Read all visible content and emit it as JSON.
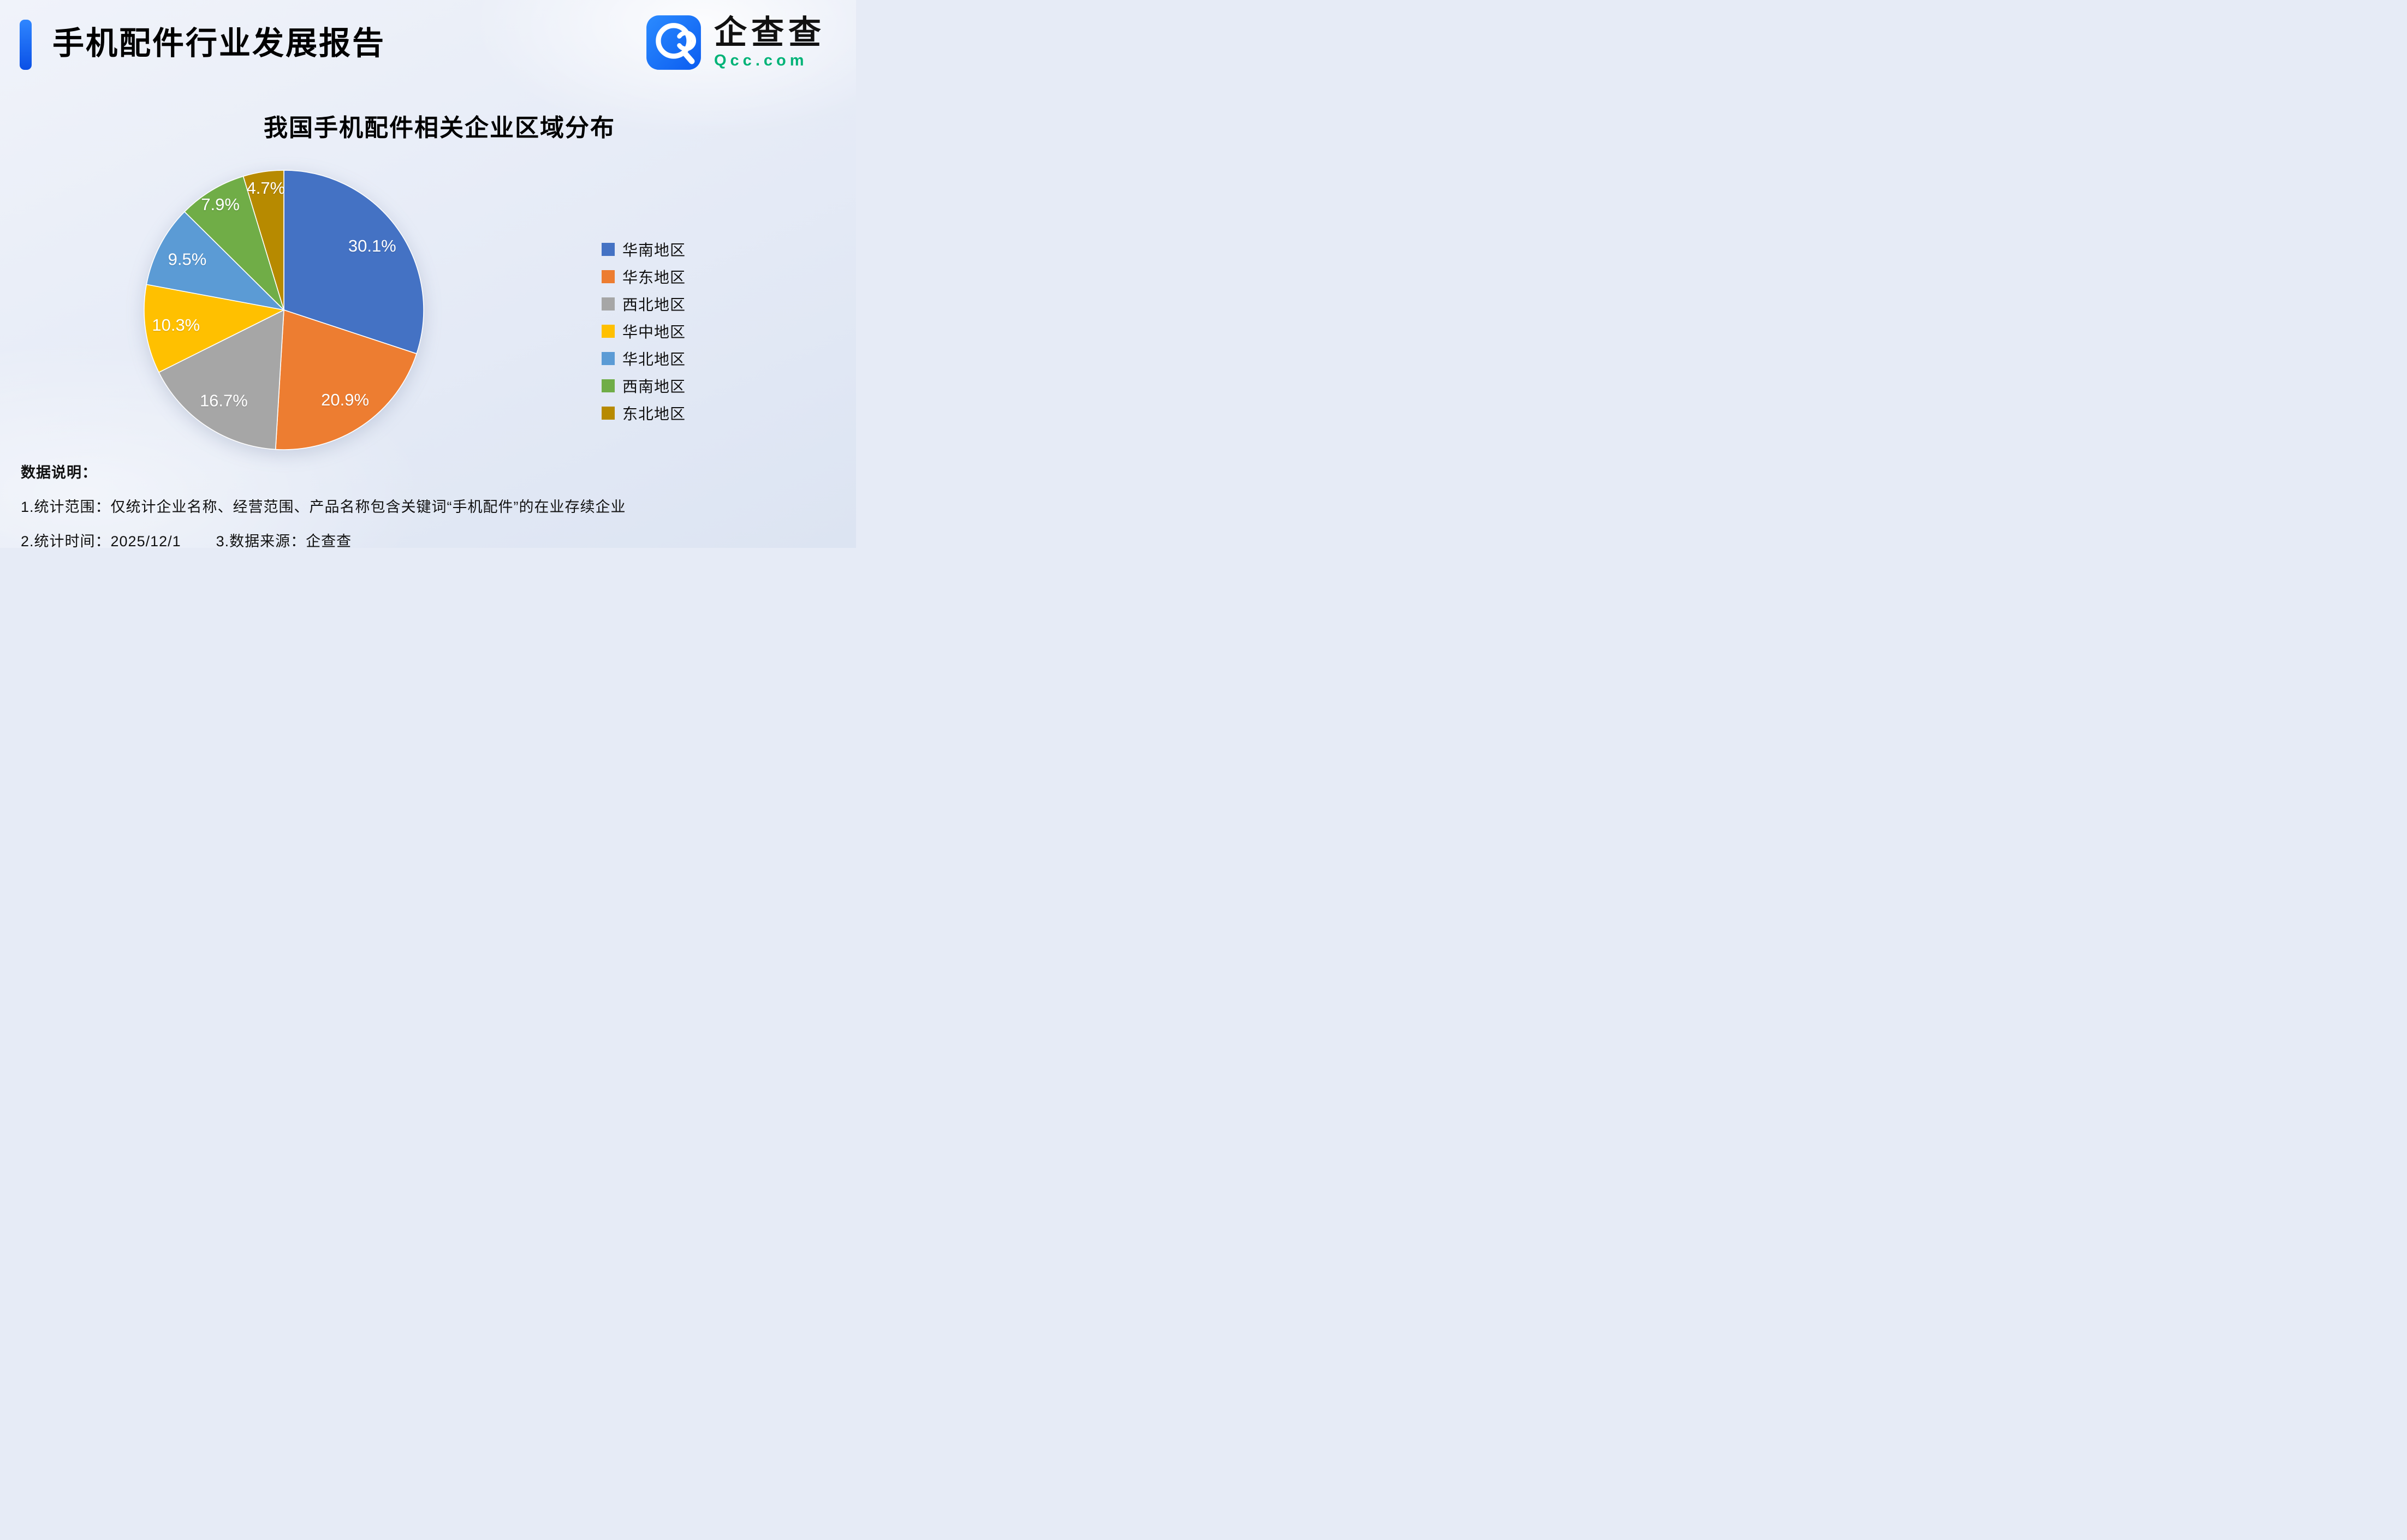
{
  "header": {
    "title": "手机配件行业发展报告",
    "logo_name": "企查查",
    "logo_domain": "Qcc.com"
  },
  "chart_data": {
    "type": "pie",
    "title": "我国手机配件相关企业区域分布",
    "unit": "%",
    "legend_position": "right",
    "start_angle_deg": 0,
    "direction": "clockwise",
    "series": [
      {
        "label": "华南地区",
        "value": 30.1,
        "color": "#4472C4"
      },
      {
        "label": "华东地区",
        "value": 20.9,
        "color": "#ED7D31"
      },
      {
        "label": "西北地区",
        "value": 16.7,
        "color": "#A6A6A6"
      },
      {
        "label": "华中地区",
        "value": 10.3,
        "color": "#FFC000"
      },
      {
        "label": "华北地区",
        "value": 9.5,
        "color": "#5B9BD5"
      },
      {
        "label": "西南地区",
        "value": 7.9,
        "color": "#70AD47"
      },
      {
        "label": "东北地区",
        "value": 4.7,
        "color": "#B78A00"
      }
    ]
  },
  "notes": {
    "heading": "数据说明：",
    "line1": "1.统计范围：仅统计企业名称、经营范围、产品名称包含关键词“手机配件”的在业存续企业",
    "line2_a": "2.统计时间：2025/12/1",
    "line2_b": "3.数据来源：企查查"
  }
}
